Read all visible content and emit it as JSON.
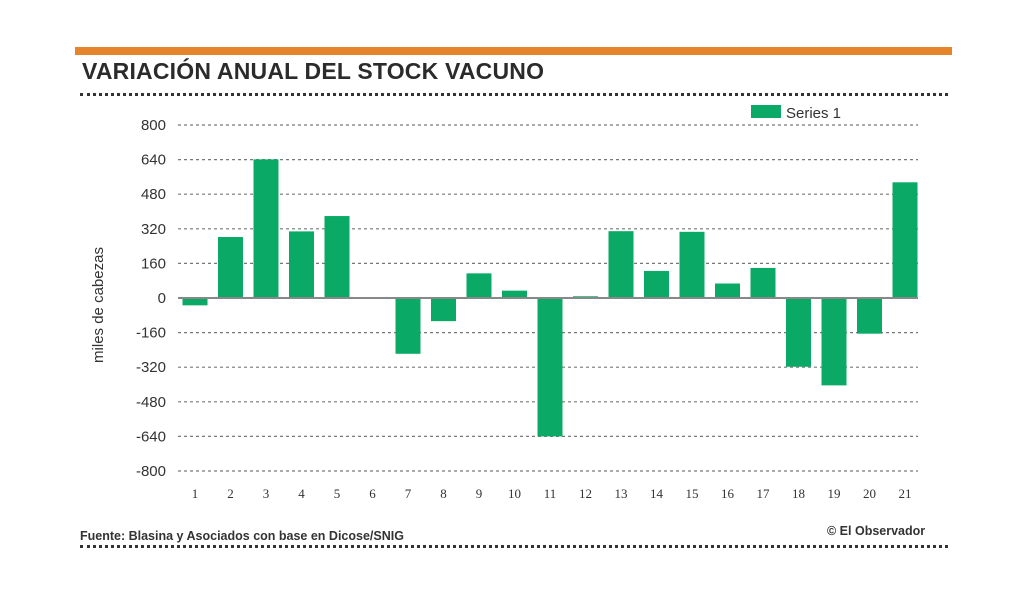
{
  "header": {
    "title": "VARIACIÓN ANUAL DEL STOCK VACUNO",
    "accent": "#e5842a"
  },
  "footer": {
    "source": "Fuente: Blasina y Asociados con base en Dicose/SNIG",
    "credit": "© El Observador"
  },
  "chart_data": {
    "type": "bar",
    "title": "VARIACIÓN ANUAL DEL STOCK VACUNO",
    "xlabel": "",
    "ylabel": "miles de cabezas",
    "categories": [
      "1",
      "2",
      "3",
      "4",
      "5",
      "6",
      "7",
      "8",
      "9",
      "10",
      "11",
      "12",
      "13",
      "14",
      "15",
      "16",
      "17",
      "18",
      "19",
      "20",
      "21"
    ],
    "series": [
      {
        "name": "Series 1",
        "color": "#0aaa66",
        "values": [
          -34,
          282,
          641,
          308,
          379,
          0,
          -258,
          -107,
          114,
          34,
          -640,
          8,
          309,
          125,
          306,
          67,
          139,
          -318,
          -404,
          -165,
          535
        ]
      }
    ],
    "ylim": [
      -800,
      800
    ],
    "yticks": [
      800,
      640,
      480,
      320,
      160,
      0,
      -160,
      -320,
      -480,
      -640,
      -800
    ],
    "grid": true,
    "legend": "top-right"
  }
}
